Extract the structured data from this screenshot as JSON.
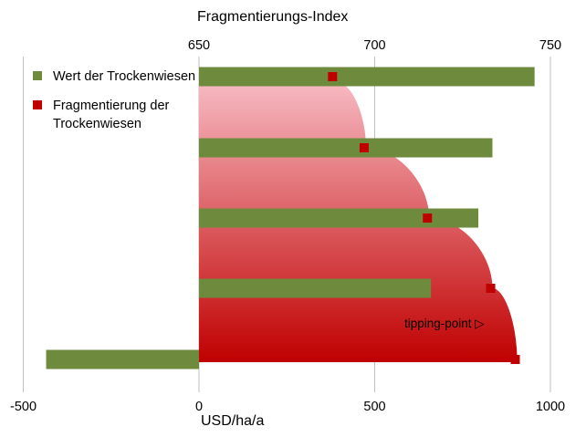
{
  "chart_data": {
    "type": "bar",
    "top_axis": {
      "title": "Fragmentierungs-Index",
      "ticks": [
        "650",
        "700",
        "750"
      ],
      "range": [
        650,
        750
      ]
    },
    "bottom_axis": {
      "title": "USD/ha/a",
      "ticks": [
        "-500",
        "0",
        "500",
        "1000"
      ],
      "range": [
        -500,
        1000
      ]
    },
    "bars": {
      "name": "Wert der Trockenwiesen",
      "color": "#6E8B3D",
      "values": [
        955,
        835,
        795,
        660,
        -435
      ]
    },
    "markers": {
      "name": "Fragmentierung der Trockenwiesen",
      "color": "#C00000",
      "values": [
        688,
        697,
        715,
        733,
        740
      ]
    },
    "annotation": "tipping-point",
    "annotation_symbol": "▷",
    "gradient_colors": [
      "#F7B9C1",
      "#C00000"
    ],
    "grid": "vertical"
  }
}
